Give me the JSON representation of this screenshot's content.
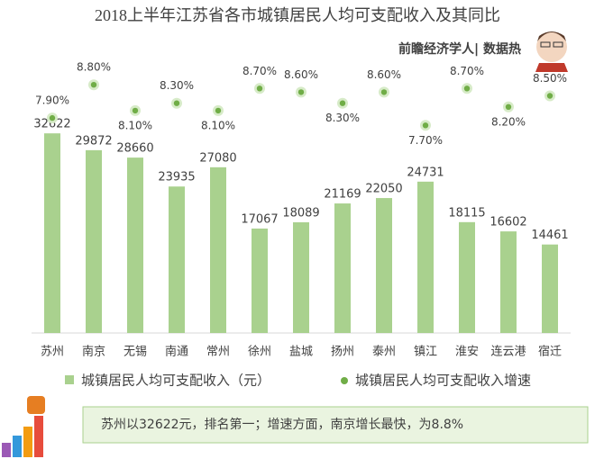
{
  "chart_data": {
    "type": "bar",
    "title": "2018上半年江苏省各市城镇居民人均可支配收入及其同比",
    "subtitle": "前瞻经济学人| 数据热",
    "categories": [
      "苏州",
      "南京",
      "无锡",
      "南通",
      "常州",
      "徐州",
      "盐城",
      "扬州",
      "泰州",
      "镇江",
      "淮安",
      "连云港",
      "宿迁"
    ],
    "series": [
      {
        "name": "城镇居民人均可支配收入（元）",
        "type": "bar",
        "color": "#a9d18e",
        "values": [
          32622,
          29872,
          28660,
          23935,
          27080,
          17067,
          18089,
          21169,
          22050,
          24731,
          18115,
          16602,
          14461
        ]
      },
      {
        "name": "城镇居民人均可支配收入增速",
        "type": "scatter",
        "axis": "y2",
        "color": "#70ad47",
        "values": [
          7.9,
          8.8,
          8.1,
          8.3,
          8.1,
          8.7,
          8.6,
          8.3,
          8.6,
          7.7,
          8.7,
          8.2,
          8.5
        ],
        "value_labels": [
          "7.90%",
          "8.80%",
          "8.10%",
          "8.30%",
          "8.10%",
          "8.70%",
          "8.60%",
          "8.30%",
          "8.60%",
          "7.70%",
          "8.70%",
          "8.20%",
          "8.50%"
        ]
      }
    ],
    "ylim": [
      0,
      35000
    ],
    "y2lim": [
      7,
      9
    ],
    "note": "苏州以32622元，排名第一；增速方面，南京增长最快，为8.8%"
  }
}
